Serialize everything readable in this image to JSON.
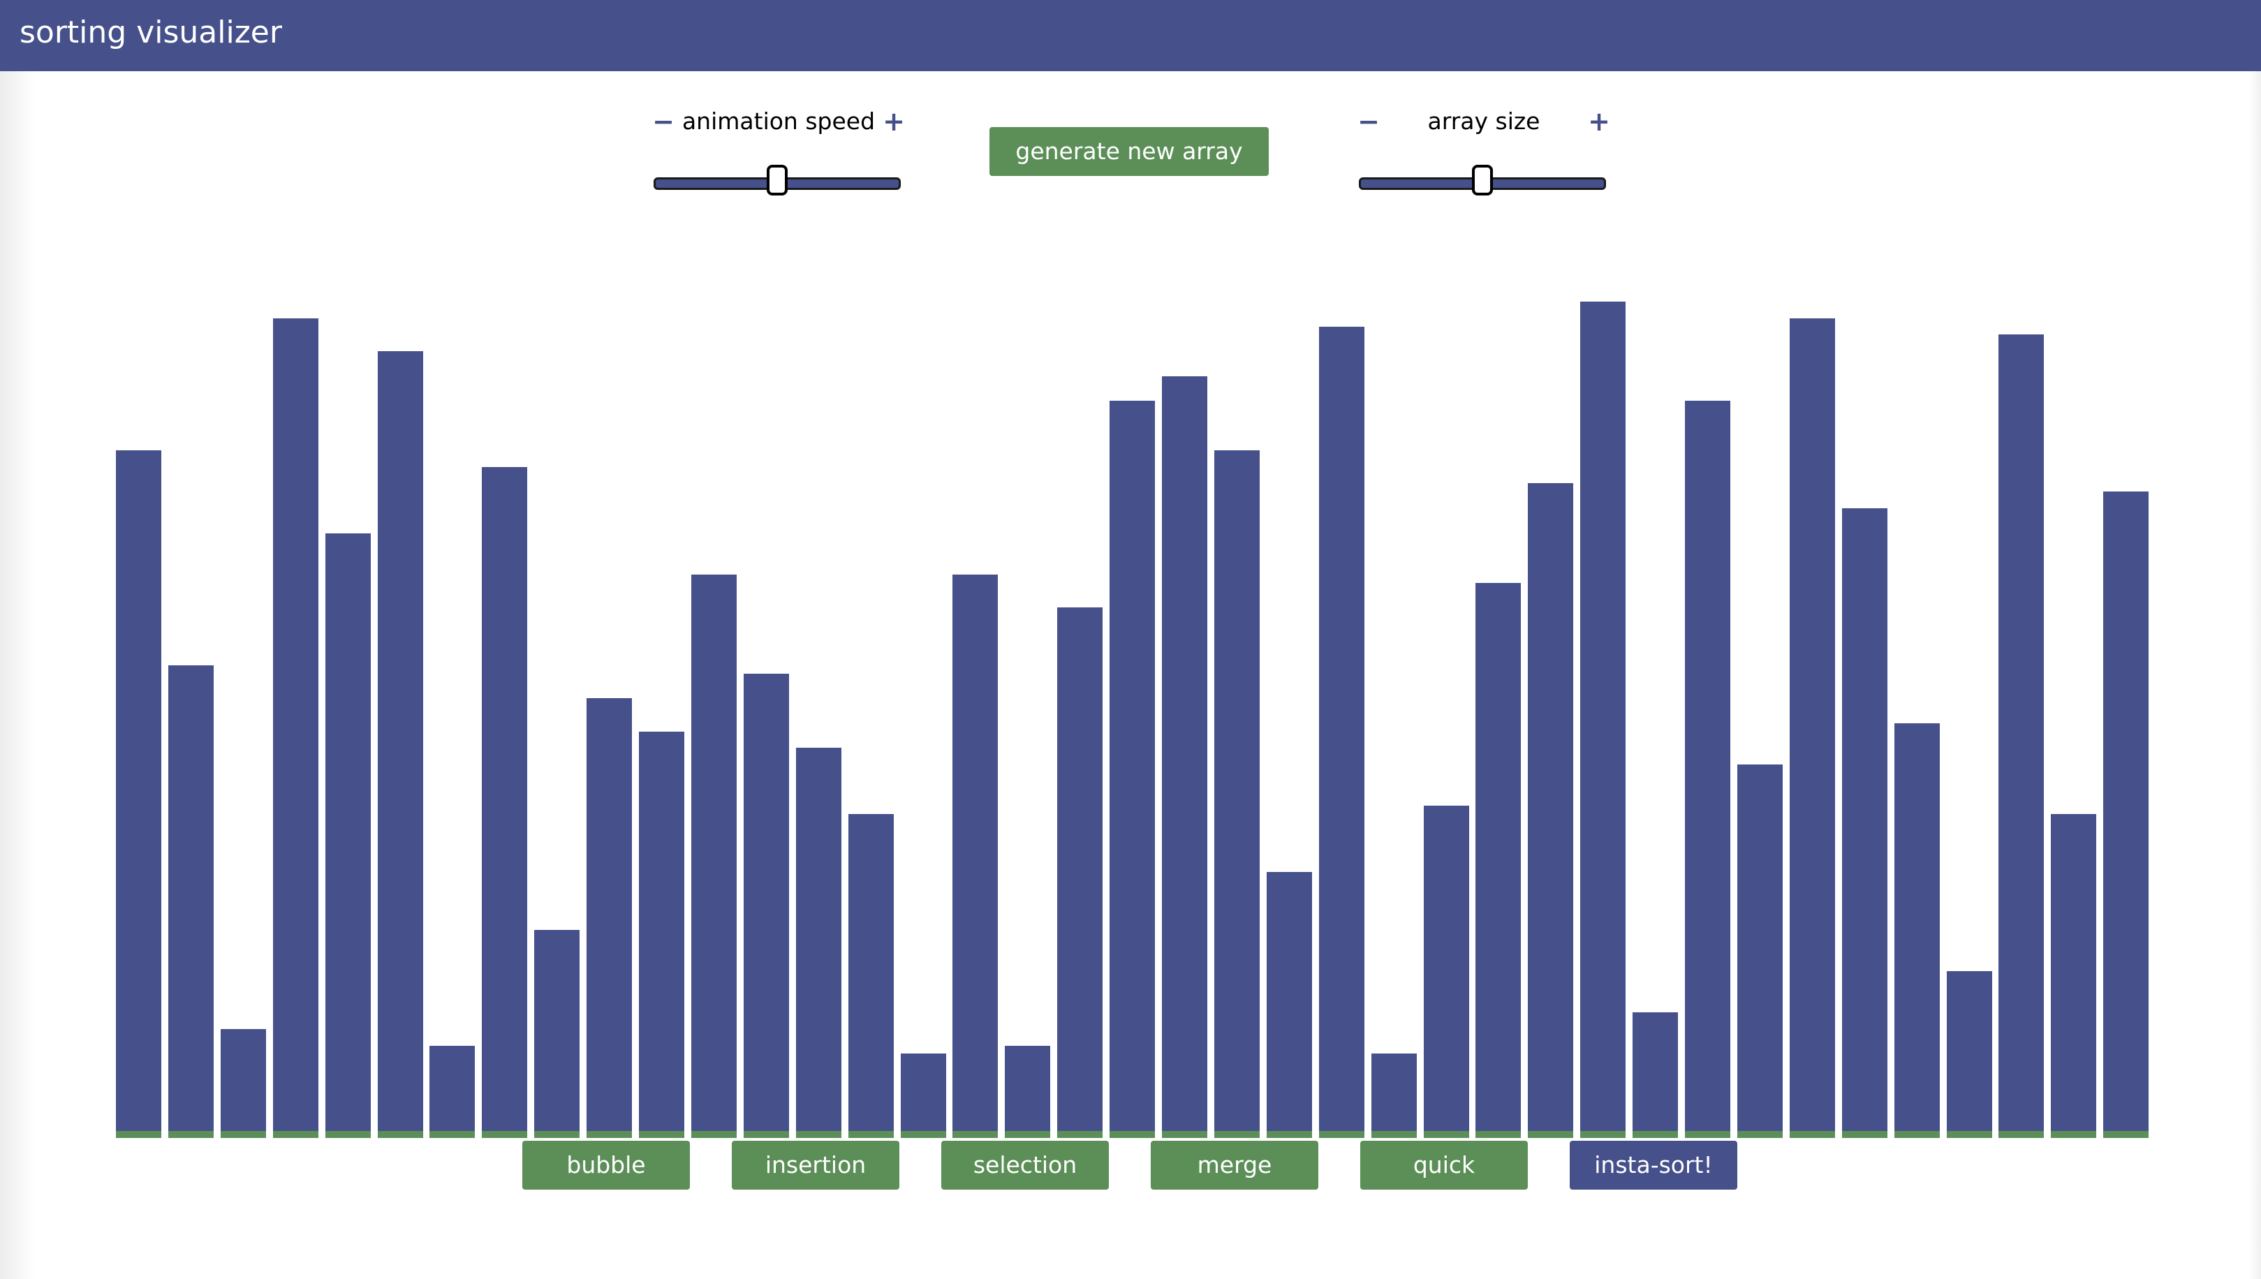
{
  "header": {
    "title": "sorting visualizer"
  },
  "controls": {
    "speed": {
      "label": "animation speed",
      "minus": "−",
      "plus": "+",
      "level": 0.5
    },
    "generate": {
      "label": "generate new array"
    },
    "size": {
      "label": "array size",
      "minus": "−",
      "plus": "+",
      "level": 0.5
    }
  },
  "algorithms": {
    "bubble": "bubble",
    "insertion": "insertion",
    "selection": "selection",
    "merge": "merge",
    "quick": "quick",
    "insta_sort": "insta-sort!"
  },
  "colors": {
    "primary": "#46508a",
    "accent": "#5c8f58",
    "background": "#ffffff"
  },
  "chart_data": {
    "type": "bar",
    "values": [
      82,
      56,
      12,
      98,
      72,
      94,
      10,
      80,
      24,
      52,
      48,
      67,
      55,
      46,
      38,
      9,
      67,
      10,
      63,
      88,
      91,
      82,
      31,
      97,
      9,
      39,
      66,
      78,
      100,
      14,
      88,
      44,
      98,
      75,
      49,
      19,
      96,
      38,
      77
    ],
    "ylim": [
      0,
      100
    ]
  }
}
